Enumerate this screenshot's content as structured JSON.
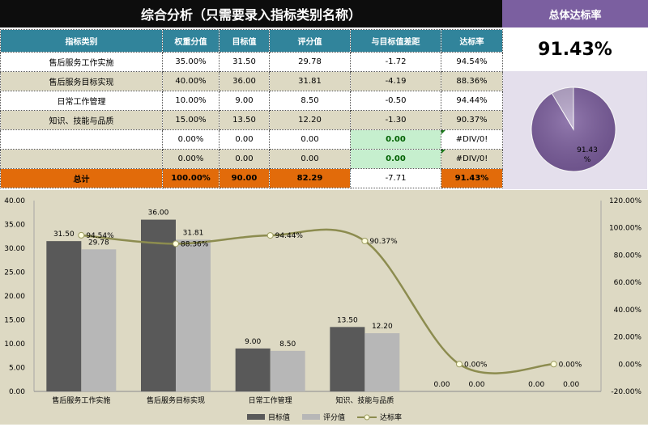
{
  "header": {
    "title": "综合分析（只需要录入指标类别名称）",
    "side_title": "总体达标率"
  },
  "table": {
    "columns": [
      "指标类别",
      "权重分值",
      "目标值",
      "评分值",
      "与目标值差距",
      "达标率"
    ],
    "rows": [
      [
        "售后服务工作实施",
        "35.00%",
        "31.50",
        "29.78",
        "-1.72",
        "94.54%"
      ],
      [
        "售后服务目标实现",
        "40.00%",
        "36.00",
        "31.81",
        "-4.19",
        "88.36%"
      ],
      [
        "日常工作管理",
        "10.00%",
        "9.00",
        "8.50",
        "-0.50",
        "94.44%"
      ],
      [
        "知识、技能与品质",
        "15.00%",
        "13.50",
        "12.20",
        "-1.30",
        "90.37%"
      ],
      [
        "",
        "0.00%",
        "0.00",
        "0.00",
        "0.00",
        "#DIV/0!"
      ],
      [
        "",
        "0.00%",
        "0.00",
        "0.00",
        "0.00",
        "#DIV/0!"
      ]
    ],
    "total": [
      "总计",
      "100.00%",
      "90.00",
      "82.29",
      "-7.71",
      "91.43%"
    ]
  },
  "overall_rate": "91.43%",
  "pie": {
    "label_line1": "91.43",
    "label_line2": "%",
    "achieved": 91.43,
    "remaining": 8.57,
    "colors": [
      "#7a5c9c",
      "#b3a2c7"
    ]
  },
  "colors": {
    "target_bar": "#595959",
    "score_bar": "#b7b7b7",
    "rate_line": "#8c8c4f",
    "plot_bg": "#ddd9c3"
  },
  "chart_data": {
    "type": "bar",
    "categories": [
      "售后服务工作实施",
      "售后服务目标实现",
      "日常工作管理",
      "知识、技能与品质",
      "",
      ""
    ],
    "series": [
      {
        "name": "目标值",
        "values": [
          31.5,
          36.0,
          9.0,
          13.5,
          0.0,
          0.0
        ],
        "labels": [
          "31.50",
          "36.00",
          "9.00",
          "13.50",
          "0.00",
          "0.00"
        ]
      },
      {
        "name": "评分值",
        "values": [
          29.78,
          31.81,
          8.5,
          12.2,
          0.0,
          0.0
        ],
        "labels": [
          "29.78",
          "31.81",
          "8.50",
          "12.20",
          "0.00",
          "0.00"
        ]
      },
      {
        "name": "达标率",
        "type": "line",
        "axis": "right",
        "values": [
          94.54,
          88.36,
          94.44,
          90.37,
          0.0,
          0.0
        ],
        "labels": [
          "94.54%",
          "88.36%",
          "94.44%",
          "90.37%",
          "0.00%",
          "0.00%"
        ]
      }
    ],
    "ylim": [
      0,
      40
    ],
    "y_ticks": [
      "0.00",
      "5.00",
      "10.00",
      "15.00",
      "20.00",
      "25.00",
      "30.00",
      "35.00",
      "40.00"
    ],
    "y2lim": [
      -20,
      120
    ],
    "y2_ticks": [
      "-20.00%",
      "0.00%",
      "20.00%",
      "40.00%",
      "60.00%",
      "80.00%",
      "100.00%",
      "120.00%"
    ],
    "grid": false,
    "legend": "bottom"
  }
}
